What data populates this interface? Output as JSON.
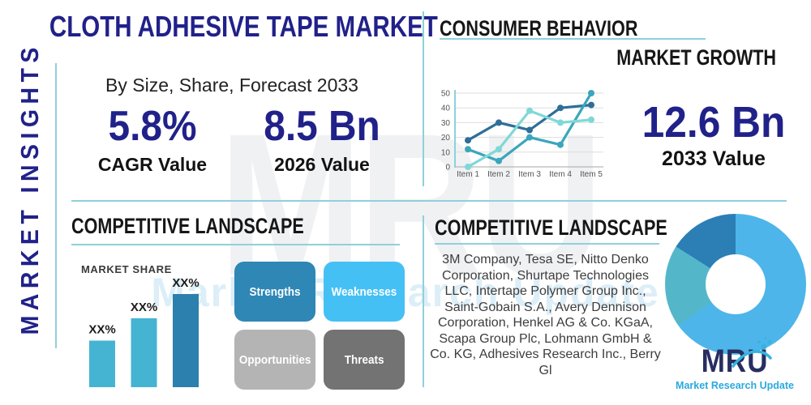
{
  "colors": {
    "navy": "#21218a",
    "heading_ink": "#161616",
    "rule_teal": "#8fd0dc",
    "body_text": "#3d3d3d",
    "logo_navy": "#272e60",
    "logo_teal": "#2aa9de"
  },
  "sidebar": {
    "vertical_label": "MARKET INSIGHTS"
  },
  "header": {
    "title": "CLOTH ADHESIVE TAPE MARKET",
    "subtitle": "By Size, Share, Forecast 2033"
  },
  "stats": {
    "cagr": {
      "value": "5.8%",
      "label": "CAGR Value"
    },
    "base": {
      "value": "8.5 Bn",
      "label": "2026 Value"
    },
    "forecast": {
      "value": "12.6 Bn",
      "label": "2033 Value"
    }
  },
  "sections": {
    "consumer_behavior": "CONSUMER BEHAVIOR",
    "market_growth": "MARKET GROWTH",
    "competitive_landscape_left": "COMPETITIVE LANDSCAPE",
    "competitive_landscape_right": "COMPETITIVE LANDSCAPE",
    "market_share": "MARKET SHARE"
  },
  "swot": {
    "items": [
      {
        "label": "Strengths",
        "color": "#2e87b5"
      },
      {
        "label": "Weaknesses",
        "color": "#45c0f5"
      },
      {
        "label": "Opportunities",
        "color": "#b4b4b4"
      },
      {
        "label": "Threats",
        "color": "#737373"
      }
    ]
  },
  "companies": {
    "display": "3M Company, Tesa SE, Nitto Denko Corporation, Shurtape Technologies LLC, Intertape Polymer Group Inc., Saint-Gobain S.A., Avery Dennison Corporation, Henkel AG & Co. KGaA, Scapa Group Plc, Lohmann GmbH & Co. KG, Adhesives Research Inc., Berry Gl"
  },
  "brand": {
    "logo_text": "MRU",
    "tagline": "Market Research Update"
  },
  "watermark": {
    "text": "MRU",
    "subtext": "Market Research Update"
  },
  "chart_data": [
    {
      "type": "line",
      "title": "",
      "categories": [
        "Item 1",
        "Item 2",
        "Item 3",
        "Item 4",
        "Item 5"
      ],
      "series": [
        {
          "name": "series-dark-blue",
          "color": "#2e6e99",
          "values": [
            18,
            30,
            25,
            40,
            42
          ]
        },
        {
          "name": "series-teal",
          "color": "#3aa6bb",
          "values": [
            12,
            4,
            20,
            15,
            50
          ]
        },
        {
          "name": "series-light-cyan",
          "color": "#7fd8d8",
          "values": [
            0,
            12,
            38,
            30,
            32
          ]
        }
      ],
      "xlabel": "",
      "ylabel": "",
      "ylim": [
        0,
        50
      ],
      "yticks": [
        0,
        10,
        20,
        30,
        40,
        50
      ],
      "grid": true,
      "legend": "none",
      "markers": "circle"
    },
    {
      "type": "bar",
      "title": "MARKET SHARE",
      "categories": [
        "Bar 1",
        "Bar 2",
        "Bar 3"
      ],
      "labels": [
        "XX%",
        "XX%",
        "XX%"
      ],
      "values": [
        25,
        37,
        50
      ],
      "colors": [
        "#44b4d2",
        "#44b4d2",
        "#2b80ad"
      ],
      "note": "actual values masked as XX% in source image; values are relative heights"
    },
    {
      "type": "pie",
      "donut": true,
      "title": "",
      "slices": [
        {
          "name": "primary",
          "percent": 65,
          "color": "#4db5ea"
        },
        {
          "name": "secondary",
          "percent": 19,
          "color": "#54b7c9"
        },
        {
          "name": "tertiary",
          "percent": 16,
          "color": "#2b7fb5"
        }
      ],
      "legend": "none"
    }
  ]
}
